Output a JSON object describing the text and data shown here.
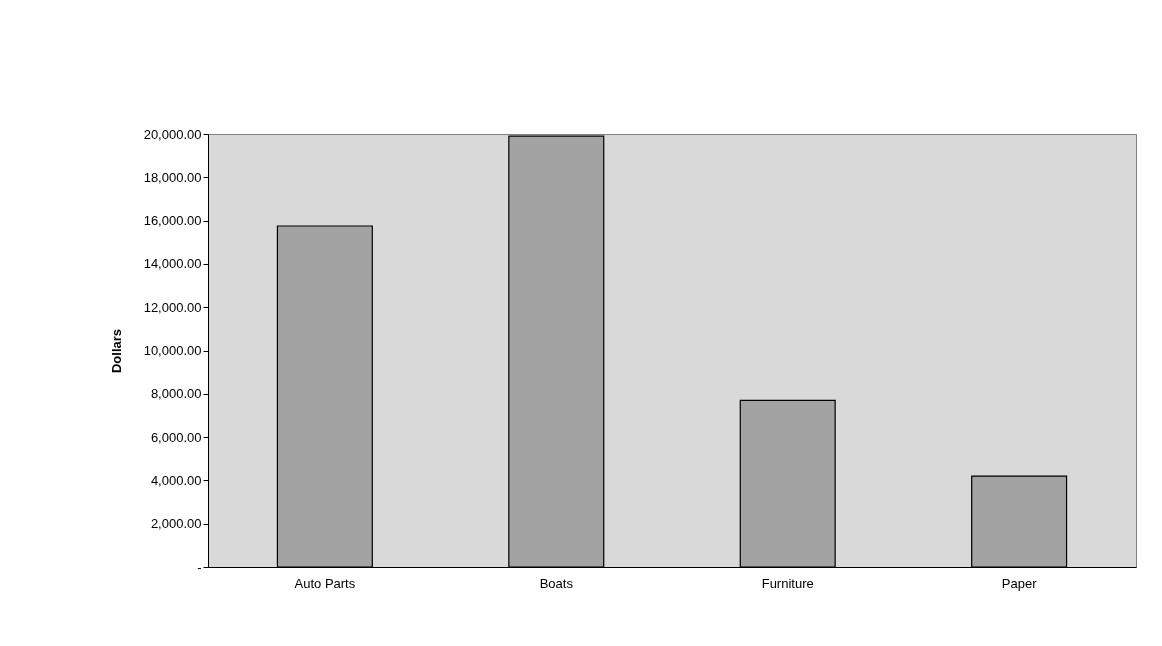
{
  "chart_data": {
    "type": "bar",
    "ylabel": "Dollars",
    "categories": [
      "Auto Parts",
      "Boats",
      "Furniture",
      "Paper"
    ],
    "values": [
      15750,
      19900,
      7700,
      4200
    ],
    "color": "#a3a3a3",
    "ylim": [
      0,
      20000
    ],
    "yticks": [
      {
        "value": 0,
        "label": "-"
      },
      {
        "value": 2000,
        "label": "2,000.00"
      },
      {
        "value": 4000,
        "label": "4,000.00"
      },
      {
        "value": 6000,
        "label": "6,000.00"
      },
      {
        "value": 8000,
        "label": "8,000.00"
      },
      {
        "value": 10000,
        "label": "10,000.00"
      },
      {
        "value": 12000,
        "label": "12,000.00"
      },
      {
        "value": 14000,
        "label": "14,000.00"
      },
      {
        "value": 16000,
        "label": "16,000.00"
      },
      {
        "value": 18000,
        "label": "18,000.00"
      },
      {
        "value": 20000,
        "label": "20,000.00"
      }
    ],
    "grid": false
  }
}
